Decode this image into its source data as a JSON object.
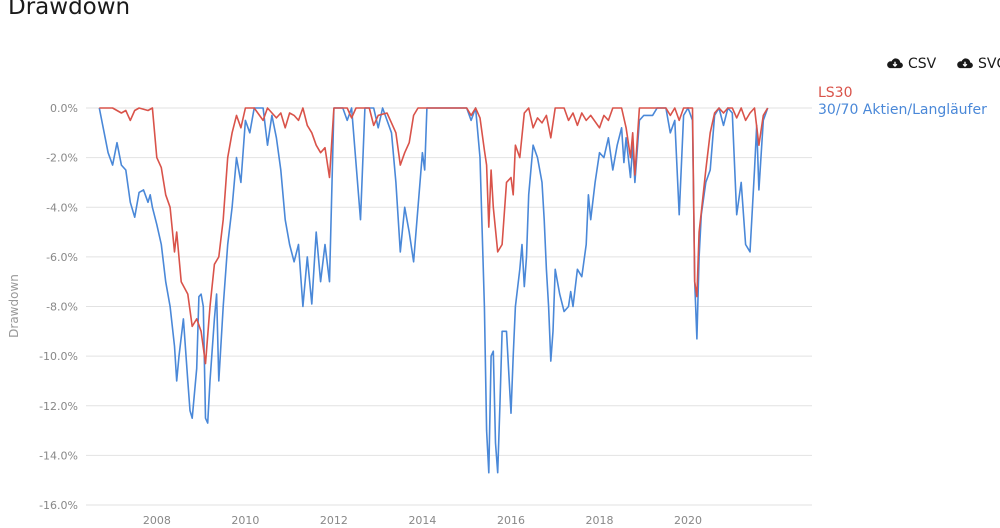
{
  "title": "Drawdown",
  "buttons": {
    "csv_label": "CSV",
    "svg_label": "SVG"
  },
  "colors": {
    "ls30": "#d9534a",
    "aktien": "#4a88d8",
    "grid": "#e2e2e2",
    "tick": "#888888"
  },
  "chart_data": {
    "type": "line",
    "title": "Drawdown",
    "xlabel": "",
    "ylabel": "Drawdown",
    "xlim": [
      2006.4,
      2022.8
    ],
    "ylim": [
      -16,
      0
    ],
    "y_ticks": [
      "0.0%",
      "-2.0%",
      "-4.0%",
      "-6.0%",
      "-8.0%",
      "-10.0%",
      "-12.0%",
      "-14.0%",
      "-16.0%"
    ],
    "x_ticks": [
      "2008",
      "2010",
      "2012",
      "2014",
      "2016",
      "2018",
      "2020"
    ],
    "grid": true,
    "legend": "top-right",
    "series": [
      {
        "name": "LS30",
        "color": "#d9534a",
        "points": [
          [
            2006.7,
            0
          ],
          [
            2007.0,
            0
          ],
          [
            2007.2,
            -0.2
          ],
          [
            2007.3,
            -0.1
          ],
          [
            2007.4,
            -0.5
          ],
          [
            2007.5,
            -0.1
          ],
          [
            2007.6,
            0
          ],
          [
            2007.8,
            -0.1
          ],
          [
            2007.9,
            0
          ],
          [
            2008.0,
            -2.0
          ],
          [
            2008.1,
            -2.4
          ],
          [
            2008.2,
            -3.5
          ],
          [
            2008.3,
            -4.0
          ],
          [
            2008.4,
            -5.8
          ],
          [
            2008.45,
            -5.0
          ],
          [
            2008.55,
            -7.0
          ],
          [
            2008.7,
            -7.5
          ],
          [
            2008.8,
            -8.8
          ],
          [
            2008.9,
            -8.5
          ],
          [
            2009.0,
            -9.0
          ],
          [
            2009.1,
            -10.3
          ],
          [
            2009.2,
            -8.0
          ],
          [
            2009.3,
            -6.3
          ],
          [
            2009.4,
            -6.0
          ],
          [
            2009.5,
            -4.5
          ],
          [
            2009.6,
            -2.0
          ],
          [
            2009.7,
            -1.0
          ],
          [
            2009.8,
            -0.3
          ],
          [
            2009.9,
            -0.8
          ],
          [
            2010.0,
            0
          ],
          [
            2010.2,
            0
          ],
          [
            2010.4,
            -0.5
          ],
          [
            2010.5,
            0
          ],
          [
            2010.7,
            -0.4
          ],
          [
            2010.8,
            -0.2
          ],
          [
            2010.9,
            -0.8
          ],
          [
            2011.0,
            -0.2
          ],
          [
            2011.1,
            -0.3
          ],
          [
            2011.2,
            -0.5
          ],
          [
            2011.3,
            0
          ],
          [
            2011.4,
            -0.7
          ],
          [
            2011.5,
            -1.0
          ],
          [
            2011.6,
            -1.5
          ],
          [
            2011.7,
            -1.8
          ],
          [
            2011.8,
            -1.6
          ],
          [
            2011.9,
            -2.8
          ],
          [
            2012.0,
            0
          ],
          [
            2012.3,
            0
          ],
          [
            2012.4,
            -0.4
          ],
          [
            2012.5,
            0
          ],
          [
            2012.8,
            0
          ],
          [
            2012.9,
            -0.7
          ],
          [
            2013.0,
            -0.3
          ],
          [
            2013.2,
            -0.2
          ],
          [
            2013.3,
            -0.6
          ],
          [
            2013.4,
            -1.0
          ],
          [
            2013.5,
            -2.3
          ],
          [
            2013.6,
            -1.8
          ],
          [
            2013.7,
            -1.4
          ],
          [
            2013.8,
            -0.3
          ],
          [
            2013.9,
            0
          ],
          [
            2014.0,
            0
          ],
          [
            2015.0,
            0
          ],
          [
            2015.1,
            -0.3
          ],
          [
            2015.2,
            0
          ],
          [
            2015.3,
            -0.4
          ],
          [
            2015.4,
            -1.7
          ],
          [
            2015.45,
            -2.3
          ],
          [
            2015.5,
            -4.8
          ],
          [
            2015.55,
            -2.5
          ],
          [
            2015.6,
            -4.0
          ],
          [
            2015.7,
            -5.8
          ],
          [
            2015.8,
            -5.5
          ],
          [
            2015.9,
            -3.0
          ],
          [
            2016.0,
            -2.8
          ],
          [
            2016.05,
            -3.5
          ],
          [
            2016.1,
            -1.5
          ],
          [
            2016.2,
            -2.0
          ],
          [
            2016.3,
            -0.2
          ],
          [
            2016.4,
            0
          ],
          [
            2016.5,
            -0.8
          ],
          [
            2016.6,
            -0.4
          ],
          [
            2016.7,
            -0.6
          ],
          [
            2016.8,
            -0.3
          ],
          [
            2016.9,
            -1.2
          ],
          [
            2017.0,
            0
          ],
          [
            2017.2,
            0
          ],
          [
            2017.3,
            -0.5
          ],
          [
            2017.4,
            -0.2
          ],
          [
            2017.5,
            -0.7
          ],
          [
            2017.6,
            -0.2
          ],
          [
            2017.7,
            -0.5
          ],
          [
            2017.8,
            -0.3
          ],
          [
            2018.0,
            -0.8
          ],
          [
            2018.1,
            -0.3
          ],
          [
            2018.2,
            -0.5
          ],
          [
            2018.3,
            0
          ],
          [
            2018.5,
            0
          ],
          [
            2018.6,
            -0.8
          ],
          [
            2018.7,
            -2.0
          ],
          [
            2018.75,
            -1.0
          ],
          [
            2018.8,
            -2.7
          ],
          [
            2018.9,
            0
          ],
          [
            2019.5,
            0
          ],
          [
            2019.6,
            -0.3
          ],
          [
            2019.7,
            0
          ],
          [
            2019.8,
            -0.5
          ],
          [
            2019.9,
            0
          ],
          [
            2020.1,
            0
          ],
          [
            2020.15,
            -7.0
          ],
          [
            2020.2,
            -7.6
          ],
          [
            2020.25,
            -5.0
          ],
          [
            2020.3,
            -4.2
          ],
          [
            2020.4,
            -2.5
          ],
          [
            2020.5,
            -1.0
          ],
          [
            2020.6,
            -0.2
          ],
          [
            2020.7,
            0
          ],
          [
            2020.8,
            -0.2
          ],
          [
            2020.9,
            0
          ],
          [
            2021.0,
            0
          ],
          [
            2021.1,
            -0.4
          ],
          [
            2021.2,
            0
          ],
          [
            2021.3,
            -0.5
          ],
          [
            2021.4,
            -0.2
          ],
          [
            2021.5,
            0
          ],
          [
            2021.6,
            -1.5
          ],
          [
            2021.7,
            -0.3
          ],
          [
            2021.8,
            0
          ]
        ]
      },
      {
        "name": "30/70 Aktien/Langläufer",
        "color": "#4a88d8",
        "points": [
          [
            2006.7,
            0
          ],
          [
            2006.9,
            -1.8
          ],
          [
            2007.0,
            -2.3
          ],
          [
            2007.1,
            -1.4
          ],
          [
            2007.2,
            -2.3
          ],
          [
            2007.3,
            -2.5
          ],
          [
            2007.4,
            -3.8
          ],
          [
            2007.5,
            -4.4
          ],
          [
            2007.6,
            -3.4
          ],
          [
            2007.7,
            -3.3
          ],
          [
            2007.8,
            -3.8
          ],
          [
            2007.85,
            -3.5
          ],
          [
            2007.9,
            -4.0
          ],
          [
            2008.0,
            -4.7
          ],
          [
            2008.1,
            -5.5
          ],
          [
            2008.2,
            -7.0
          ],
          [
            2008.3,
            -8.0
          ],
          [
            2008.4,
            -9.6
          ],
          [
            2008.45,
            -11.0
          ],
          [
            2008.5,
            -10.0
          ],
          [
            2008.6,
            -8.5
          ],
          [
            2008.7,
            -11.0
          ],
          [
            2008.75,
            -12.2
          ],
          [
            2008.8,
            -12.5
          ],
          [
            2008.9,
            -10.5
          ],
          [
            2008.95,
            -7.6
          ],
          [
            2009.0,
            -7.5
          ],
          [
            2009.05,
            -8.0
          ],
          [
            2009.1,
            -12.5
          ],
          [
            2009.15,
            -12.7
          ],
          [
            2009.2,
            -11.0
          ],
          [
            2009.3,
            -8.5
          ],
          [
            2009.35,
            -7.5
          ],
          [
            2009.4,
            -11.0
          ],
          [
            2009.5,
            -8.0
          ],
          [
            2009.6,
            -5.5
          ],
          [
            2009.7,
            -4.0
          ],
          [
            2009.8,
            -2.0
          ],
          [
            2009.9,
            -3.0
          ],
          [
            2010.0,
            -0.5
          ],
          [
            2010.1,
            -1.0
          ],
          [
            2010.2,
            0
          ],
          [
            2010.4,
            0
          ],
          [
            2010.5,
            -1.5
          ],
          [
            2010.6,
            -0.3
          ],
          [
            2010.7,
            -1.2
          ],
          [
            2010.8,
            -2.5
          ],
          [
            2010.9,
            -4.5
          ],
          [
            2011.0,
            -5.5
          ],
          [
            2011.1,
            -6.2
          ],
          [
            2011.2,
            -5.5
          ],
          [
            2011.3,
            -8.0
          ],
          [
            2011.4,
            -6.0
          ],
          [
            2011.5,
            -7.9
          ],
          [
            2011.6,
            -5.0
          ],
          [
            2011.7,
            -7.0
          ],
          [
            2011.8,
            -5.5
          ],
          [
            2011.9,
            -7.0
          ],
          [
            2012.0,
            0
          ],
          [
            2012.2,
            0
          ],
          [
            2012.3,
            -0.5
          ],
          [
            2012.4,
            0
          ],
          [
            2012.6,
            -4.5
          ],
          [
            2012.7,
            0
          ],
          [
            2012.9,
            0
          ],
          [
            2013.0,
            -0.8
          ],
          [
            2013.1,
            0
          ],
          [
            2013.3,
            -1.0
          ],
          [
            2013.4,
            -3.0
          ],
          [
            2013.5,
            -5.8
          ],
          [
            2013.6,
            -4.0
          ],
          [
            2013.7,
            -5.0
          ],
          [
            2013.8,
            -6.2
          ],
          [
            2013.9,
            -4.0
          ],
          [
            2014.0,
            -1.8
          ],
          [
            2014.05,
            -2.5
          ],
          [
            2014.1,
            0
          ],
          [
            2015.0,
            0
          ],
          [
            2015.1,
            -0.5
          ],
          [
            2015.2,
            0
          ],
          [
            2015.3,
            -2.0
          ],
          [
            2015.35,
            -5.0
          ],
          [
            2015.4,
            -8.0
          ],
          [
            2015.45,
            -13.0
          ],
          [
            2015.5,
            -14.7
          ],
          [
            2015.55,
            -10.0
          ],
          [
            2015.6,
            -9.8
          ],
          [
            2015.65,
            -13.5
          ],
          [
            2015.7,
            -14.7
          ],
          [
            2015.75,
            -12.0
          ],
          [
            2015.8,
            -9.0
          ],
          [
            2015.9,
            -9.0
          ],
          [
            2016.0,
            -12.3
          ],
          [
            2016.05,
            -10.0
          ],
          [
            2016.1,
            -8.0
          ],
          [
            2016.2,
            -6.5
          ],
          [
            2016.25,
            -5.5
          ],
          [
            2016.3,
            -7.2
          ],
          [
            2016.35,
            -6.0
          ],
          [
            2016.4,
            -3.5
          ],
          [
            2016.5,
            -1.5
          ],
          [
            2016.6,
            -2.0
          ],
          [
            2016.7,
            -3.0
          ],
          [
            2016.75,
            -4.5
          ],
          [
            2016.8,
            -6.5
          ],
          [
            2016.85,
            -8.0
          ],
          [
            2016.9,
            -10.2
          ],
          [
            2016.95,
            -9.0
          ],
          [
            2017.0,
            -6.5
          ],
          [
            2017.1,
            -7.5
          ],
          [
            2017.2,
            -8.2
          ],
          [
            2017.3,
            -8.0
          ],
          [
            2017.35,
            -7.4
          ],
          [
            2017.4,
            -8.0
          ],
          [
            2017.5,
            -6.5
          ],
          [
            2017.6,
            -6.8
          ],
          [
            2017.7,
            -5.5
          ],
          [
            2017.75,
            -3.5
          ],
          [
            2017.8,
            -4.5
          ],
          [
            2017.9,
            -3.0
          ],
          [
            2018.0,
            -1.8
          ],
          [
            2018.1,
            -2.0
          ],
          [
            2018.2,
            -1.2
          ],
          [
            2018.3,
            -2.5
          ],
          [
            2018.4,
            -1.5
          ],
          [
            2018.5,
            -0.8
          ],
          [
            2018.55,
            -2.2
          ],
          [
            2018.6,
            -1.2
          ],
          [
            2018.7,
            -2.8
          ],
          [
            2018.75,
            -1.5
          ],
          [
            2018.8,
            -3.0
          ],
          [
            2018.9,
            -0.5
          ],
          [
            2019.0,
            -0.3
          ],
          [
            2019.2,
            -0.3
          ],
          [
            2019.3,
            0
          ],
          [
            2019.5,
            0
          ],
          [
            2019.6,
            -1.0
          ],
          [
            2019.7,
            -0.5
          ],
          [
            2019.8,
            -4.3
          ],
          [
            2019.9,
            -0.3
          ],
          [
            2020.0,
            0
          ],
          [
            2020.1,
            -0.5
          ],
          [
            2020.15,
            -7.0
          ],
          [
            2020.2,
            -9.3
          ],
          [
            2020.25,
            -6.0
          ],
          [
            2020.3,
            -4.3
          ],
          [
            2020.4,
            -3.0
          ],
          [
            2020.5,
            -2.5
          ],
          [
            2020.6,
            -0.3
          ],
          [
            2020.7,
            0
          ],
          [
            2020.8,
            -0.7
          ],
          [
            2020.9,
            0
          ],
          [
            2021.0,
            -0.2
          ],
          [
            2021.1,
            -4.3
          ],
          [
            2021.2,
            -3.0
          ],
          [
            2021.3,
            -5.5
          ],
          [
            2021.4,
            -5.8
          ],
          [
            2021.5,
            -2.5
          ],
          [
            2021.55,
            -0.7
          ],
          [
            2021.6,
            -3.3
          ],
          [
            2021.7,
            -0.5
          ],
          [
            2021.8,
            0
          ]
        ]
      }
    ]
  }
}
